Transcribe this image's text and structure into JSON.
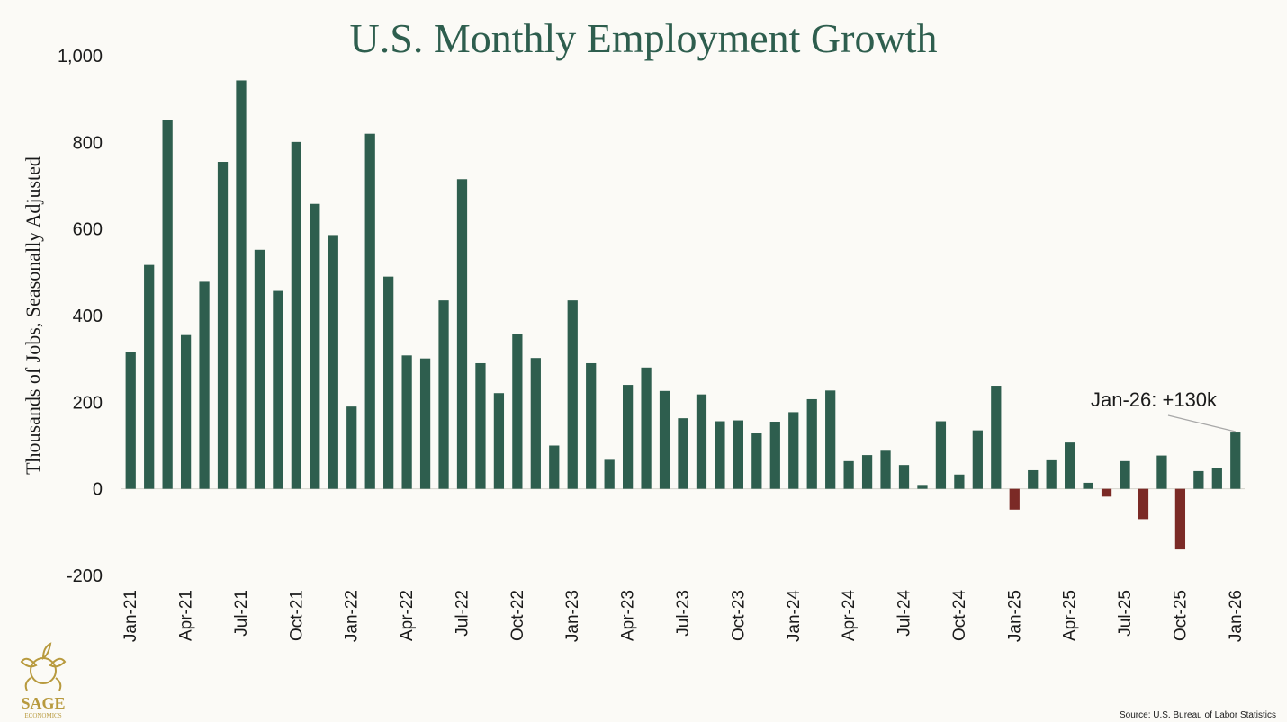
{
  "colors": {
    "positive": "#2e5e4e",
    "negative": "#7b2a26",
    "background": "#fbfaf6",
    "logo": "#b89a3e"
  },
  "logo": {
    "name": "SAGE",
    "tagline": "ECONOMICS"
  },
  "source": "Source: U.S. Bureau of Labor Statistics",
  "chart_data": {
    "type": "bar",
    "title": "U.S. Monthly Employment Growth",
    "xlabel": "",
    "ylabel": "Thousands of Jobs, Seasonally Adjusted",
    "ylim": [
      -200,
      1000
    ],
    "yticks": [
      -200,
      0,
      200,
      400,
      600,
      800,
      1000
    ],
    "ytick_labels": [
      "-200",
      "0",
      "200",
      "400",
      "600",
      "800",
      "1,000"
    ],
    "grid": false,
    "categories": [
      "Jan-21",
      "Feb-21",
      "Mar-21",
      "Apr-21",
      "May-21",
      "Jun-21",
      "Jul-21",
      "Aug-21",
      "Sep-21",
      "Oct-21",
      "Nov-21",
      "Dec-21",
      "Jan-22",
      "Feb-22",
      "Mar-22",
      "Apr-22",
      "May-22",
      "Jun-22",
      "Jul-22",
      "Aug-22",
      "Sep-22",
      "Oct-22",
      "Nov-22",
      "Dec-22",
      "Jan-23",
      "Feb-23",
      "Mar-23",
      "Apr-23",
      "May-23",
      "Jun-23",
      "Jul-23",
      "Aug-23",
      "Sep-23",
      "Oct-23",
      "Nov-23",
      "Dec-23",
      "Jan-24",
      "Feb-24",
      "Mar-24",
      "Apr-24",
      "May-24",
      "Jun-24",
      "Jul-24",
      "Aug-24",
      "Sep-24",
      "Oct-24",
      "Nov-24",
      "Dec-24",
      "Jan-25",
      "Feb-25",
      "Mar-25",
      "Apr-25",
      "May-25",
      "Jun-25",
      "Jul-25",
      "Aug-25",
      "Sep-25",
      "Oct-25",
      "Nov-25",
      "Dec-25",
      "Jan-26"
    ],
    "values": [
      315,
      517,
      852,
      355,
      478,
      755,
      943,
      552,
      457,
      801,
      658,
      586,
      190,
      820,
      490,
      308,
      301,
      435,
      715,
      290,
      221,
      357,
      302,
      100,
      435,
      290,
      67,
      240,
      280,
      226,
      163,
      218,
      156,
      158,
      128,
      155,
      177,
      207,
      227,
      64,
      78,
      88,
      55,
      9,
      156,
      33,
      135,
      238,
      -48,
      43,
      66,
      107,
      14,
      -18,
      64,
      -70,
      77,
      -140,
      41,
      48,
      130
    ],
    "xtick_labels": [
      "Jan-21",
      "Apr-21",
      "Jul-21",
      "Oct-21",
      "Jan-22",
      "Apr-22",
      "Jul-22",
      "Oct-22",
      "Jan-23",
      "Apr-23",
      "Jul-23",
      "Oct-23",
      "Jan-24",
      "Apr-24",
      "Jul-24",
      "Oct-24",
      "Jan-25",
      "Apr-25",
      "Jul-25",
      "Oct-25",
      "Jan-26"
    ],
    "annotation": {
      "text": "Jan-26: +130k",
      "target": "Jan-26"
    }
  }
}
